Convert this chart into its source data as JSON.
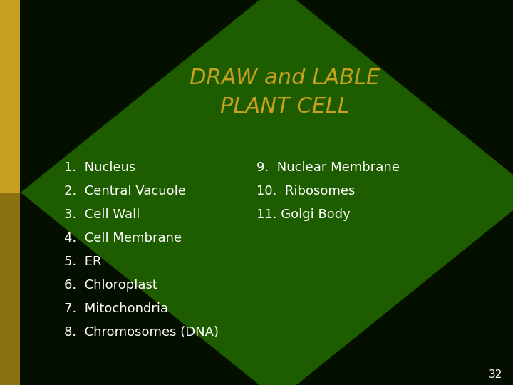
{
  "title_line1": "DRAW and LABLE",
  "title_line2": "PLANT CELL",
  "title_color": "#C8A020",
  "bg_color": "#050f00",
  "diamond_color": "#1e5c00",
  "left_bar_color_top": "#C8A020",
  "left_bar_color_bottom": "#8a7010",
  "text_color": "#ffffff",
  "page_number": "32",
  "left_items": [
    "1.  Nucleus",
    "2.  Central Vacuole",
    "3.  Cell Wall",
    "4.  Cell Membrane",
    "5.  ER",
    "6.  Chloroplast",
    "7.  Mitochondria",
    "8.  Chromosomes (DNA)"
  ],
  "right_items": [
    "9.  Nuclear Membrane",
    "10.  Ribosomes",
    "11. Golgi Body"
  ],
  "title_fontsize": 22,
  "item_fontsize": 13,
  "page_num_fontsize": 11
}
